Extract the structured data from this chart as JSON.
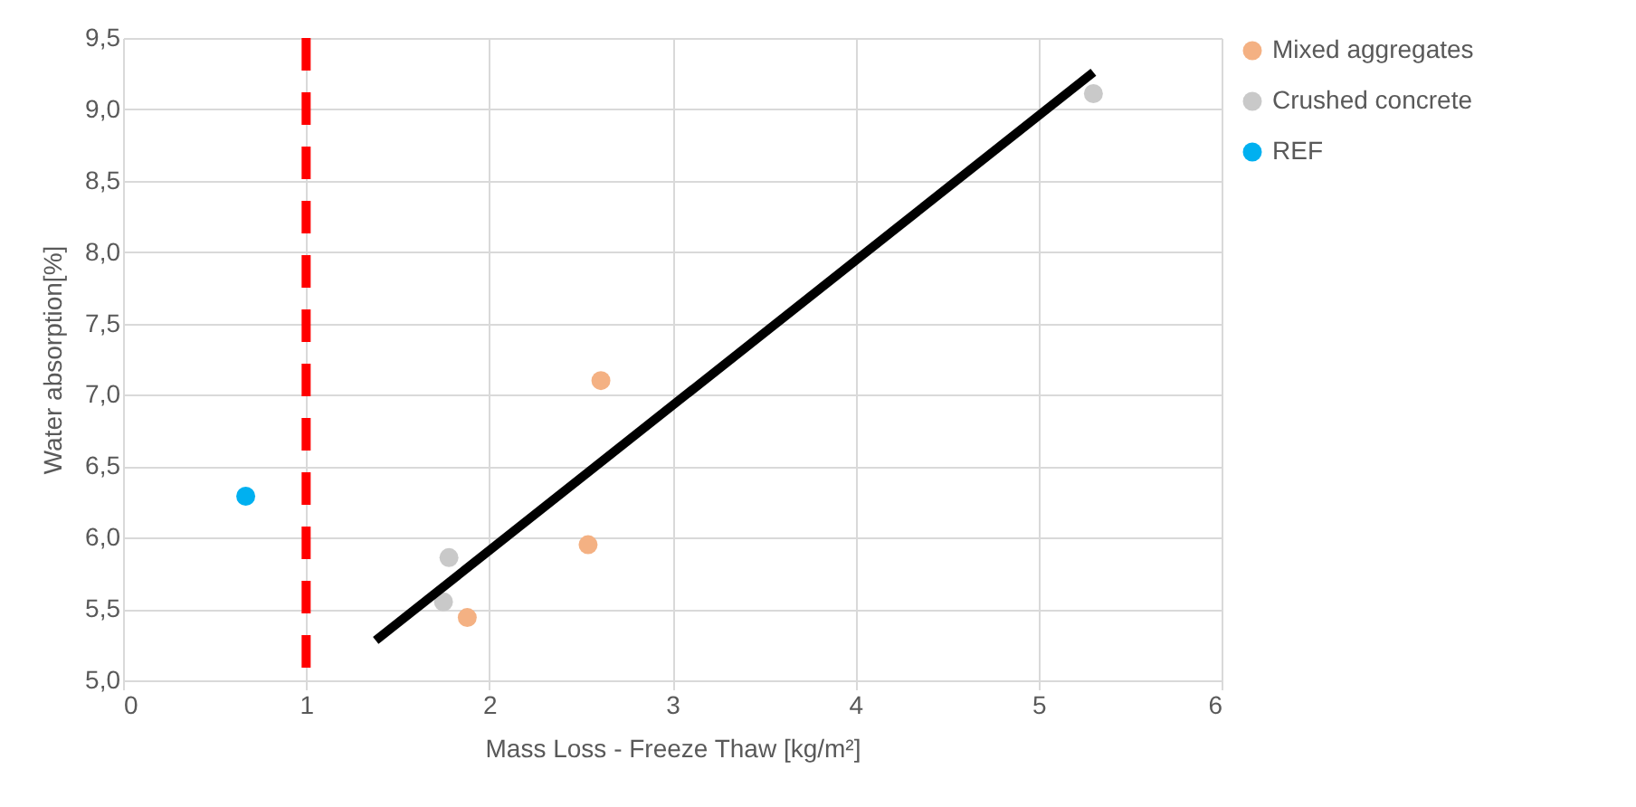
{
  "chart_data": {
    "type": "scatter",
    "xlabel": "Mass Loss - Freeze Thaw [kg/m²]",
    "ylabel": "Water absorption[%]",
    "xlim": [
      0,
      6
    ],
    "xticks": [
      0,
      1,
      2,
      3,
      4,
      5,
      6
    ],
    "ylim": [
      5,
      9.5
    ],
    "yticks": [
      {
        "value": 5,
        "label": "5,0"
      },
      {
        "value": 5.5,
        "label": "5,5"
      },
      {
        "value": 6,
        "label": "6,0"
      },
      {
        "value": 6.5,
        "label": "6,5"
      },
      {
        "value": 7,
        "label": "7,0"
      },
      {
        "value": 7.5,
        "label": "7,5"
      },
      {
        "value": 8,
        "label": "8,0"
      },
      {
        "value": 8.5,
        "label": "8,5"
      },
      {
        "value": 9,
        "label": "9,0"
      },
      {
        "value": 9.5,
        "label": "9,5"
      }
    ],
    "grid": true,
    "legend": "right",
    "marker": "circle",
    "series": [
      {
        "name": "Mixed aggregates",
        "color": "#f4b183",
        "x": [
          1.88,
          2.54,
          2.61
        ],
        "values": [
          5.44,
          5.95,
          7.1
        ]
      },
      {
        "name": "Crushed concrete",
        "color": "#c9c9c9",
        "x": [
          1.75,
          1.78,
          5.3
        ],
        "values": [
          5.55,
          5.86,
          9.11
        ]
      },
      {
        "name": "REF",
        "color": "#00b0f0",
        "x": [
          0.67
        ],
        "values": [
          6.29
        ]
      },
      {
        "type": "line",
        "marker": "none",
        "color": "#000000",
        "x": [
          1.38,
          5.3
        ],
        "values": [
          5.28,
          9.26
        ]
      }
    ],
    "ref_lines": [
      {
        "axis": "x",
        "value": 1,
        "color": "#ff0000",
        "line_style": "dashed"
      }
    ]
  }
}
